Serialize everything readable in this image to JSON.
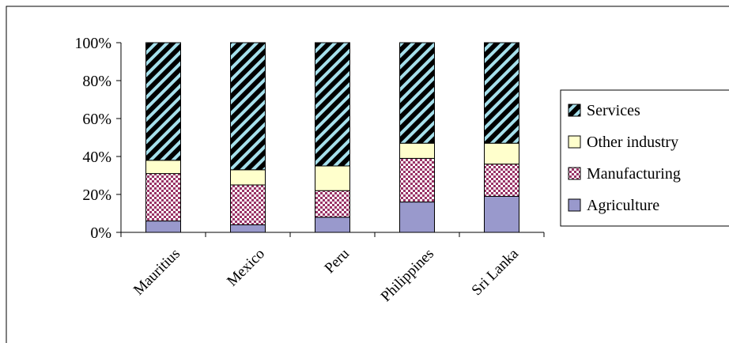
{
  "chart_data": {
    "type": "bar",
    "stacked": true,
    "normalized": true,
    "categories": [
      "Mauritius",
      "Mexico",
      "Peru",
      "Philippines",
      "Sri Lanka"
    ],
    "series": [
      {
        "name": "Agriculture",
        "values": [
          6,
          4,
          8,
          16,
          19
        ],
        "color": "#9999cc",
        "pattern": "solid"
      },
      {
        "name": "Manufacturing",
        "values": [
          25,
          21,
          14,
          23,
          17
        ],
        "color": "#993366",
        "pattern": "checker"
      },
      {
        "name": "Other industry",
        "values": [
          7,
          8,
          13,
          8,
          11
        ],
        "color": "#ffffcc",
        "pattern": "solid"
      },
      {
        "name": "Services",
        "values": [
          62,
          67,
          65,
          53,
          53
        ],
        "color": "#000000",
        "pattern": "diagonal-stripes"
      }
    ],
    "ylim": [
      0,
      100
    ],
    "yticks": [
      "0%",
      "20%",
      "40%",
      "60%",
      "80%",
      "100%"
    ],
    "grid": false,
    "legend": {
      "position": "right",
      "order": [
        "Services",
        "Other industry",
        "Manufacturing",
        "Agriculture"
      ]
    },
    "xlabel": "",
    "ylabel": "",
    "title": ""
  }
}
